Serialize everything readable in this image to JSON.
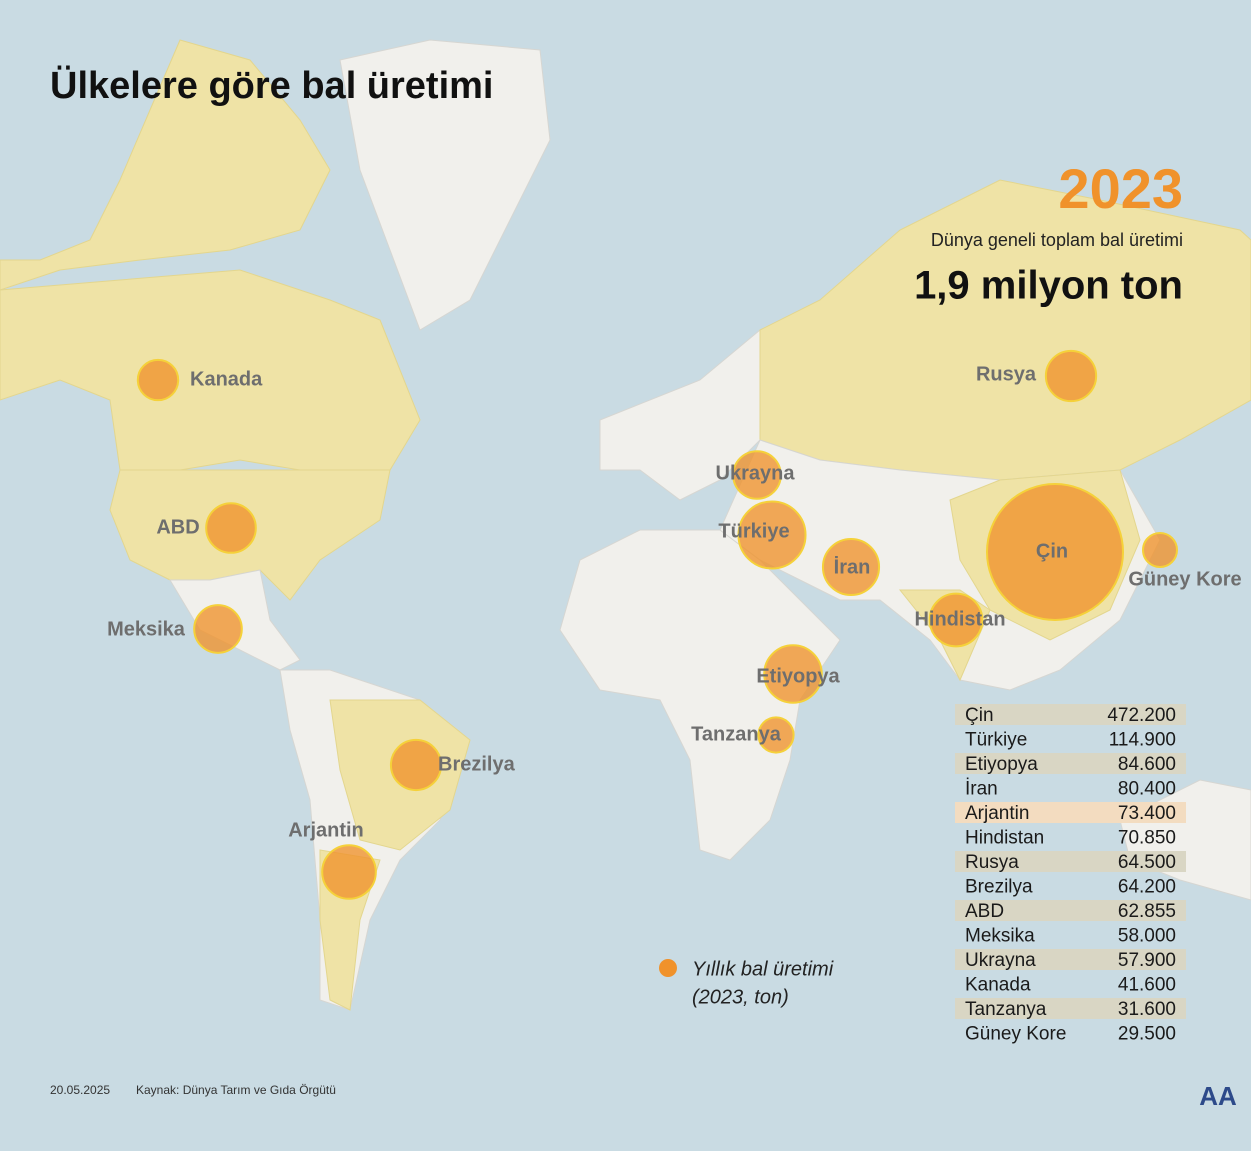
{
  "title": "Ülkelere göre bal üretimi",
  "year": "2023",
  "subtitle": "Dünya geneli toplam bal üretimi",
  "total": "1,9 milyon ton",
  "legend": {
    "label": "Yıllık bal üretimi",
    "sublabel": "(2023, ton)"
  },
  "countries": {
    "names": [
      "Çin",
      "Türkiye",
      "Etiyopya",
      "İran",
      "Arjantin",
      "Hindistan",
      "Rusya",
      "Brezilya",
      "ABD",
      "Meksika",
      "Ukrayna",
      "Kanada",
      "Tanzanya",
      "Güney Kore"
    ],
    "values": [
      472200,
      114900,
      84600,
      80400,
      73400,
      70850,
      64500,
      64200,
      62855,
      58000,
      57900,
      41600,
      31600,
      29500
    ],
    "value_labels": [
      "472.200",
      "114.900",
      "84.600",
      "80.400",
      "73.400",
      "70.850",
      "64.500",
      "64.200",
      "62.855",
      "58.000",
      "57.900",
      "41.600",
      "31.600",
      "29.500"
    ]
  },
  "footer": {
    "date": "20.05.2025",
    "source": "Kaynak: Dünya Tarım ve Gıda Örgütü",
    "logo": "AA"
  }
}
